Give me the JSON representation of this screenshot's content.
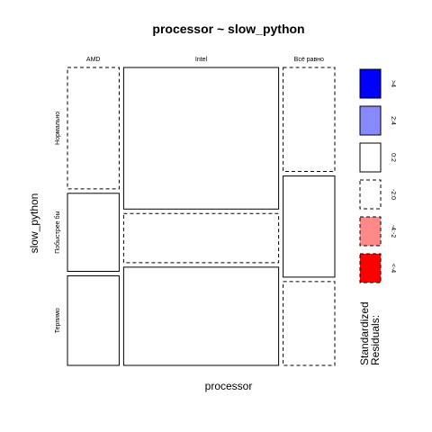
{
  "chart_data": {
    "type": "mosaic",
    "title": "processor ~ slow_python",
    "xlabel": "processor",
    "ylabel": "slow_python",
    "x_categories": [
      "AMD",
      "Intel",
      "Всё равно"
    ],
    "y_categories": [
      "Нормально",
      "Побыстрее бы",
      "Терпимо"
    ],
    "column_proportions": [
      0.2,
      0.6,
      0.2
    ],
    "cells": [
      [
        {
          "proportion": 0.42,
          "residual_class": "-2:0"
        },
        {
          "proportion": 0.27,
          "residual_class": "0:2"
        },
        {
          "proportion": 0.31,
          "residual_class": "0:2"
        }
      ],
      [
        {
          "proportion": 0.49,
          "residual_class": "0:2"
        },
        {
          "proportion": 0.17,
          "residual_class": "-2:0"
        },
        {
          "proportion": 0.34,
          "residual_class": "0:2"
        }
      ],
      [
        {
          "proportion": 0.36,
          "residual_class": "-2:0"
        },
        {
          "proportion": 0.35,
          "residual_class": "0:2"
        },
        {
          "proportion": 0.29,
          "residual_class": "-2:0"
        }
      ]
    ],
    "legend": {
      "title_lines": [
        "Standardized",
        "Residuals:"
      ],
      "placement": "right",
      "entries": [
        {
          "label": ">4",
          "fill": "#0000ff",
          "dashed": false
        },
        {
          "label": "2:4",
          "fill": "#8888ff",
          "dashed": false
        },
        {
          "label": "0:2",
          "fill": "#ffffff",
          "dashed": false
        },
        {
          "label": "-2:0",
          "fill": "#ffffff",
          "dashed": true
        },
        {
          "label": "-4:-2",
          "fill": "#ff8888",
          "dashed": true
        },
        {
          "label": "<-4",
          "fill": "#ff0000",
          "dashed": true
        }
      ]
    }
  }
}
